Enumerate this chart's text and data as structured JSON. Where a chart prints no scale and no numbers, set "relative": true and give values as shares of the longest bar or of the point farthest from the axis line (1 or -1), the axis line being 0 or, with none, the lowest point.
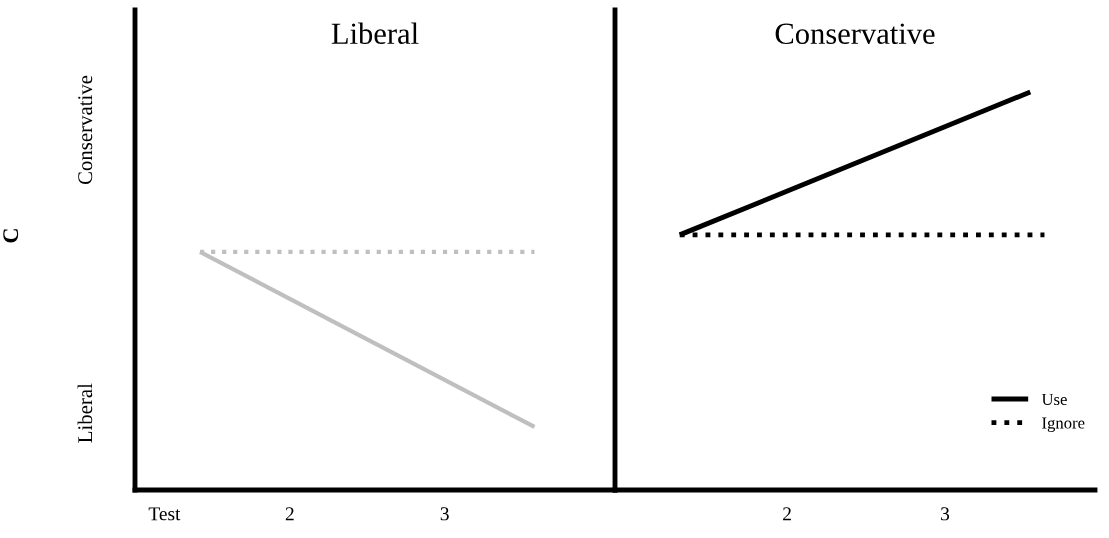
{
  "chart_data": [
    {
      "type": "line",
      "title": "Liberal",
      "ylabel": "C",
      "relative": true,
      "annotations": [
        "Conservative",
        "Liberal"
      ],
      "xlim": [
        1.0,
        4.1
      ],
      "xticks": [
        {
          "value": 1.19,
          "label": "Test"
        },
        2,
        3
      ],
      "grid": false,
      "legend": false,
      "series": [
        {
          "color": "#bfbfbf",
          "line_style": "solid",
          "x": [
            1.42,
            3.58
          ],
          "values": [
            1.0,
            0.265
          ]
        },
        {
          "color": "#bfbfbf",
          "line_style": "dotted",
          "x": [
            1.42,
            3.58
          ],
          "values": [
            1.0,
            1.0
          ]
        }
      ]
    },
    {
      "type": "line",
      "title": "Conservative",
      "relative": true,
      "xlim": [
        0.91,
        3.95
      ],
      "xticks": [
        2,
        3
      ],
      "grid": false,
      "legend": "bottom right",
      "series": [
        {
          "name": "Use",
          "color": "#000000",
          "line_style": "solid",
          "x": [
            1.32,
            3.54
          ],
          "values": [
            0.641,
            1.0
          ]
        },
        {
          "name": "Ignore",
          "color": "#000000",
          "line_style": "dotted",
          "x": [
            1.32,
            3.63
          ],
          "values": [
            0.641,
            0.641
          ]
        }
      ]
    }
  ]
}
